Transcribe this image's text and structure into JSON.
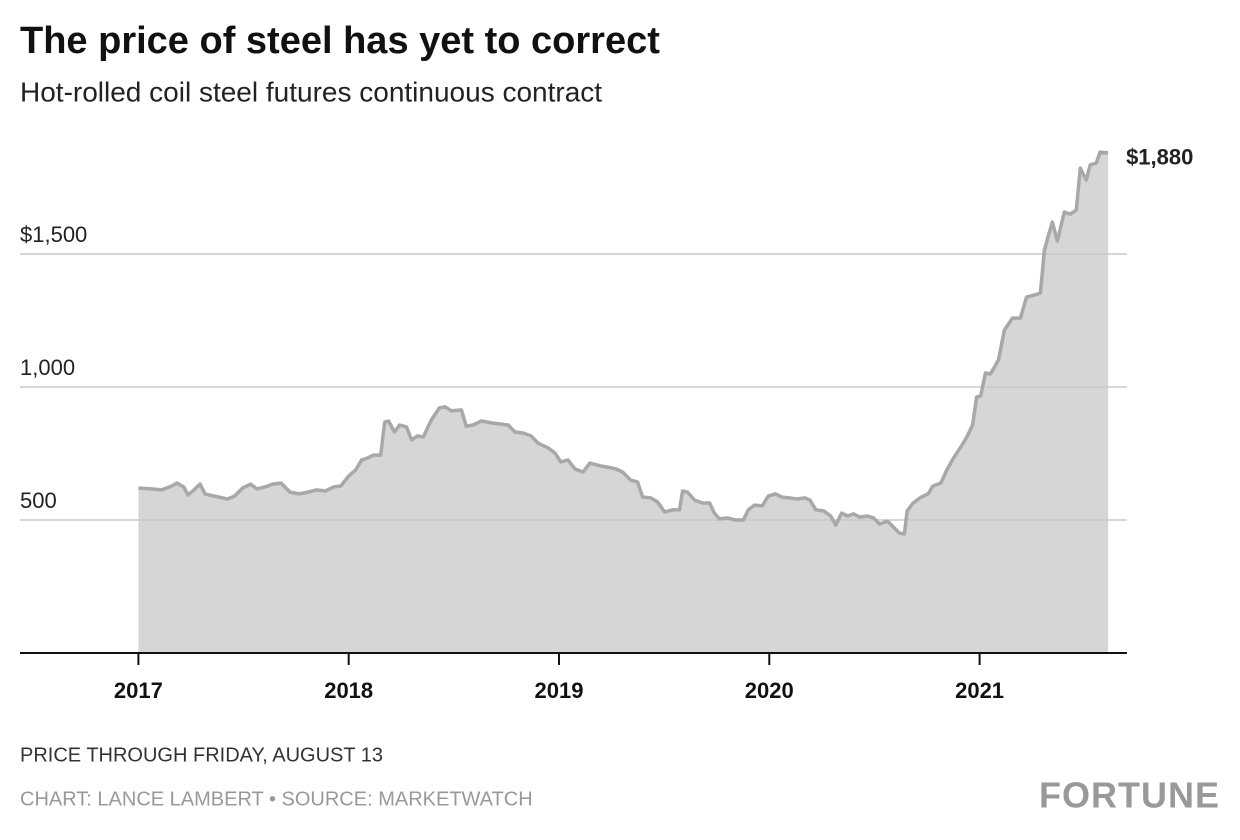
{
  "chart_data": {
    "type": "area",
    "title": "The price of steel has yet to correct",
    "subtitle": "Hot-rolled coil steel futures continuous contract",
    "note": "PRICE THROUGH FRIDAY, AUGUST 13",
    "source": "CHART: LANCE LAMBERT • SOURCE: MARKETWATCH",
    "brand": "FORTUNE",
    "end_label": "$1,880",
    "line_color": "#a8a8a8",
    "fill_color": "#d6d6d6",
    "grid": true,
    "xlim": [
      2016.437,
      2021.701
    ],
    "xticks": [
      2017,
      2018,
      2019,
      2020,
      2021
    ],
    "ylim": [
      0,
      2000
    ],
    "yticks": [
      500,
      {
        "value": 1000,
        "label": "1,000"
      },
      {
        "value": 1500,
        "label": "$1,500"
      }
    ],
    "x": [
      2017.0,
      2017.063,
      2017.111,
      2017.159,
      2017.183,
      2017.216,
      2017.236,
      2017.264,
      2017.293,
      2017.317,
      2017.361,
      2017.423,
      2017.457,
      2017.495,
      2017.534,
      2017.563,
      2017.601,
      2017.639,
      2017.678,
      2017.721,
      2017.764,
      2017.808,
      2017.846,
      2017.889,
      2017.928,
      2017.962,
      2018.0,
      2018.033,
      2018.062,
      2018.09,
      2018.118,
      2018.152,
      2018.171,
      2018.19,
      2018.218,
      2018.242,
      2018.275,
      2018.299,
      2018.327,
      2018.355,
      2018.393,
      2018.431,
      2018.46,
      2018.488,
      2018.536,
      2018.559,
      2018.592,
      2018.63,
      2018.678,
      2018.72,
      2018.758,
      2018.791,
      2018.829,
      2018.867,
      2018.9,
      2018.948,
      2018.981,
      2019.009,
      2019.043,
      2019.076,
      2019.114,
      2019.147,
      2019.199,
      2019.232,
      2019.27,
      2019.303,
      2019.341,
      2019.374,
      2019.398,
      2019.436,
      2019.469,
      2019.502,
      2019.54,
      2019.573,
      2019.588,
      2019.611,
      2019.645,
      2019.682,
      2019.716,
      2019.739,
      2019.763,
      2019.801,
      2019.839,
      2019.877,
      2019.9,
      2019.929,
      2019.967,
      2019.995,
      2020.028,
      2020.061,
      2020.094,
      2020.132,
      2020.17,
      2020.193,
      2020.222,
      2020.259,
      2020.292,
      2020.316,
      2020.344,
      2020.373,
      2020.401,
      2020.429,
      2020.467,
      2020.495,
      2020.524,
      2020.561,
      2020.59,
      2020.618,
      2020.642,
      2020.656,
      2020.684,
      2020.722,
      2020.755,
      2020.778,
      2020.816,
      2020.844,
      2020.873,
      2020.91,
      2020.939,
      2020.967,
      2020.986,
      2021.005,
      2021.028,
      2021.052,
      2021.09,
      2021.118,
      2021.156,
      2021.194,
      2021.223,
      2021.261,
      2021.289,
      2021.308,
      2021.327,
      2021.346,
      2021.37,
      2021.403,
      2021.431,
      2021.46,
      2021.479,
      2021.507,
      2021.526,
      2021.555,
      2021.573,
      2021.611
    ],
    "values": [
      620,
      617,
      613,
      628,
      639,
      624,
      594,
      613,
      635,
      598,
      590,
      579,
      590,
      620,
      635,
      617,
      624,
      635,
      639,
      605,
      598,
      605,
      613,
      609,
      624,
      628,
      665,
      688,
      726,
      733,
      744,
      744,
      868,
      872,
      831,
      857,
      850,
      801,
      816,
      812,
      876,
      921,
      925,
      910,
      914,
      853,
      857,
      872,
      865,
      861,
      857,
      831,
      827,
      816,
      789,
      771,
      752,
      718,
      726,
      692,
      680,
      714,
      703,
      699,
      692,
      680,
      650,
      643,
      586,
      583,
      568,
      530,
      538,
      538,
      609,
      605,
      575,
      564,
      564,
      526,
      504,
      508,
      500,
      500,
      538,
      556,
      553,
      590,
      598,
      586,
      583,
      579,
      583,
      575,
      538,
      534,
      515,
      481,
      526,
      515,
      523,
      511,
      515,
      508,
      485,
      496,
      474,
      451,
      447,
      534,
      564,
      586,
      598,
      628,
      639,
      688,
      729,
      774,
      812,
      857,
      962,
      966,
      1053,
      1049,
      1102,
      1214,
      1259,
      1259,
      1338,
      1346,
      1353,
      1515,
      1568,
      1620,
      1549,
      1658,
      1650,
      1665,
      1823,
      1778,
      1835,
      1842,
      1883,
      1880
    ]
  }
}
